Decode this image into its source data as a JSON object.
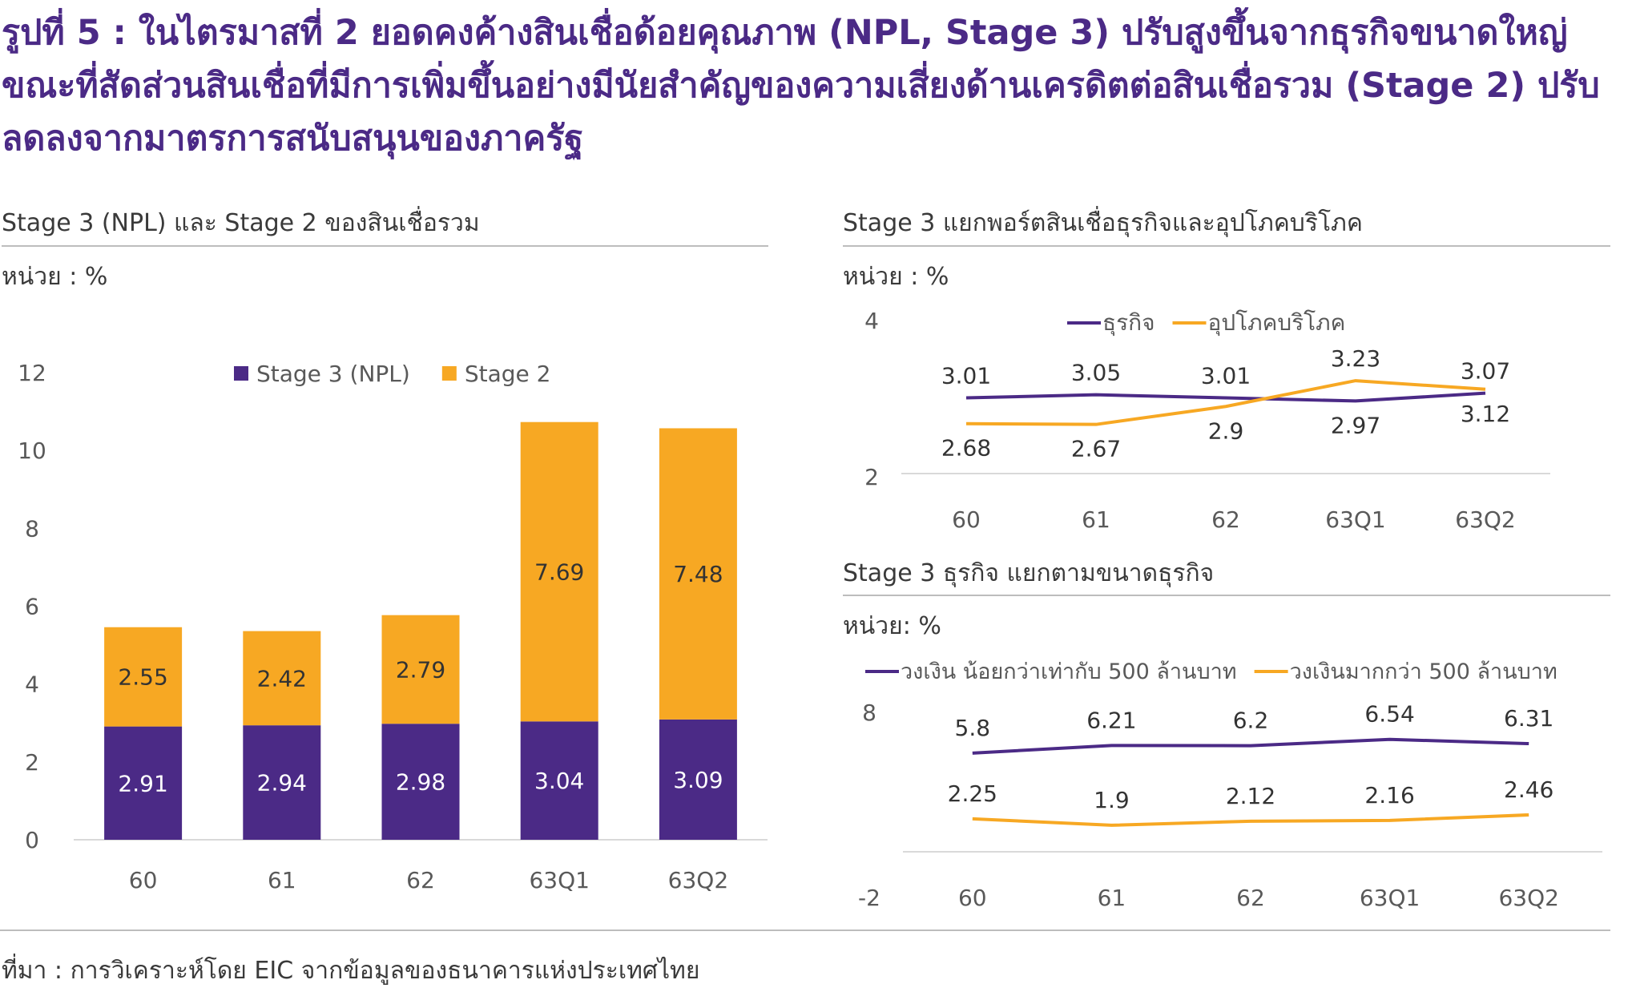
{
  "figure": {
    "title": "รูปที่ 5 : ในไตรมาสที่ 2 ยอดคงค้างสินเชื่อด้อยคุณภาพ (NPL, Stage 3) ปรับสูงขึ้นจากธุรกิจขนาดใหญ่ ขณะที่สัดส่วนสินเชื่อที่มีการเพิ่มขึ้นอย่างมีนัยสำคัญของความเสี่ยงด้านเครดิตต่อสินเชื่อรวม (Stage 2) ปรับลดลงจากมาตรการสนับสนุนของภาครัฐ",
    "source": "ที่มา : การวิเคราะห์โดย EIC จากข้อมูลของธนาคารแห่งประเทศไทย"
  },
  "colors": {
    "purple": "#4b2a86",
    "orange": "#f7a823",
    "title": "#4b2a86",
    "axis": "#d9d9d9"
  },
  "chart_data": [
    {
      "type": "bar",
      "stacked": true,
      "title": "Stage 3 (NPL) และ Stage 2 ของสินเชื่อรวม",
      "unit": "หน่วย : %",
      "categories": [
        "60",
        "61",
        "62",
        "63Q1",
        "63Q2"
      ],
      "ylim": [
        0,
        12
      ],
      "yticks": [
        0,
        2,
        4,
        6,
        8,
        10,
        12
      ],
      "grid": false,
      "legend": "top",
      "series": [
        {
          "name": "Stage 3 (NPL)",
          "color": "#4b2a86",
          "values": [
            2.91,
            2.94,
            2.98,
            3.04,
            3.09
          ],
          "labels": [
            "2.91",
            "2.94",
            "2.98",
            "3.04",
            "3.09"
          ]
        },
        {
          "name": "Stage 2",
          "color": "#f7a823",
          "values": [
            2.55,
            2.42,
            2.79,
            7.69,
            7.48
          ],
          "labels": [
            "2.55",
            "2.42",
            "2.79",
            "7.69",
            "7.48"
          ]
        }
      ]
    },
    {
      "type": "line",
      "title": "Stage 3 แยกพอร์ตสินเชื่อธุรกิจและอุปโภคบริโภค",
      "unit": "หน่วย : %",
      "categories": [
        "60",
        "61",
        "62",
        "63Q1",
        "63Q2"
      ],
      "ylim": [
        2,
        4
      ],
      "yticks": [
        2,
        4
      ],
      "grid": false,
      "legend": "top",
      "series": [
        {
          "name": "ธุรกิจ",
          "color": "#4b2a86",
          "values": [
            3.01,
            3.05,
            3.01,
            2.97,
            3.07
          ],
          "labels": [
            "3.01",
            "3.05",
            "3.01",
            "2.97",
            "3.07"
          ],
          "label_pos": [
            "above",
            "above",
            "above",
            "below",
            "above"
          ]
        },
        {
          "name": "อุปโภคบริโภค",
          "color": "#f7a823",
          "values": [
            2.68,
            2.67,
            2.9,
            3.23,
            3.12
          ],
          "labels": [
            "2.68",
            "2.67",
            "2.9",
            "3.23",
            "3.12"
          ],
          "label_pos": [
            "below",
            "below",
            "below",
            "above",
            "below"
          ]
        }
      ]
    },
    {
      "type": "line",
      "title": "Stage 3 ธุรกิจ แยกตามขนาดธุรกิจ",
      "unit": "หน่วย: %",
      "categories": [
        "60",
        "61",
        "62",
        "63Q1",
        "63Q2"
      ],
      "ylim": [
        -2,
        8
      ],
      "yticks": [
        -2,
        8
      ],
      "grid": false,
      "legend": "top",
      "series": [
        {
          "name": "วงเงิน น้อยกว่าเท่ากับ 500 ล้านบาท",
          "color": "#4b2a86",
          "values": [
            5.8,
            6.21,
            6.2,
            6.54,
            6.31
          ],
          "labels": [
            "5.8",
            "6.21",
            "6.2",
            "6.54",
            "6.31"
          ],
          "label_pos": [
            "above",
            "above",
            "above",
            "above",
            "above"
          ]
        },
        {
          "name": "วงเงินมากกว่า 500 ล้านบาท",
          "color": "#f7a823",
          "values": [
            2.25,
            1.9,
            2.12,
            2.16,
            2.46
          ],
          "labels": [
            "2.25",
            "1.9",
            "2.12",
            "2.16",
            "2.46"
          ],
          "label_pos": [
            "above",
            "above",
            "above",
            "above",
            "above"
          ]
        }
      ]
    }
  ]
}
